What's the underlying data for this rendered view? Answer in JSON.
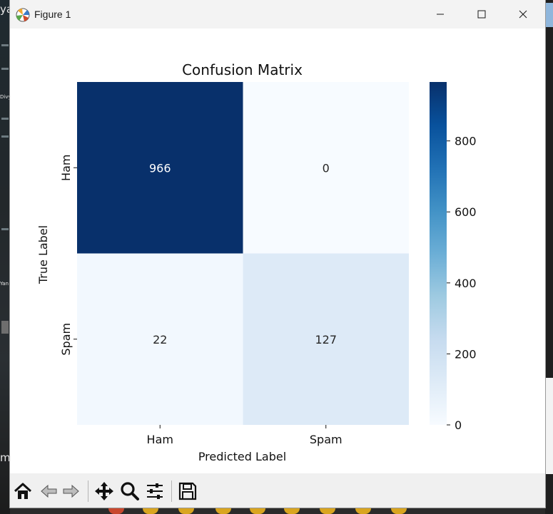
{
  "window": {
    "title": "Figure 1"
  },
  "background": {
    "left_text_top": "ya",
    "left_text_bottom": "mi",
    "left_small_1": "Divy",
    "left_small_2": "Yan"
  },
  "toolbar": {
    "icons": [
      "home-icon",
      "back-icon",
      "forward-icon",
      "pan-icon",
      "zoom-icon",
      "configure-subplots-icon",
      "save-icon"
    ]
  },
  "chart_data": {
    "type": "heatmap",
    "title": "Confusion Matrix",
    "xlabel": "Predicted Label",
    "ylabel": "True Label",
    "x_categories": [
      "Ham",
      "Spam"
    ],
    "y_categories": [
      "Ham",
      "Spam"
    ],
    "values": [
      [
        966,
        0
      ],
      [
        22,
        127
      ]
    ],
    "colormap": "Blues",
    "colorbar": {
      "ticks": [
        0,
        200,
        400,
        600,
        800
      ],
      "range": [
        0,
        966
      ]
    },
    "colors": {
      "low": "#f7fbff",
      "high": "#08306b"
    }
  }
}
